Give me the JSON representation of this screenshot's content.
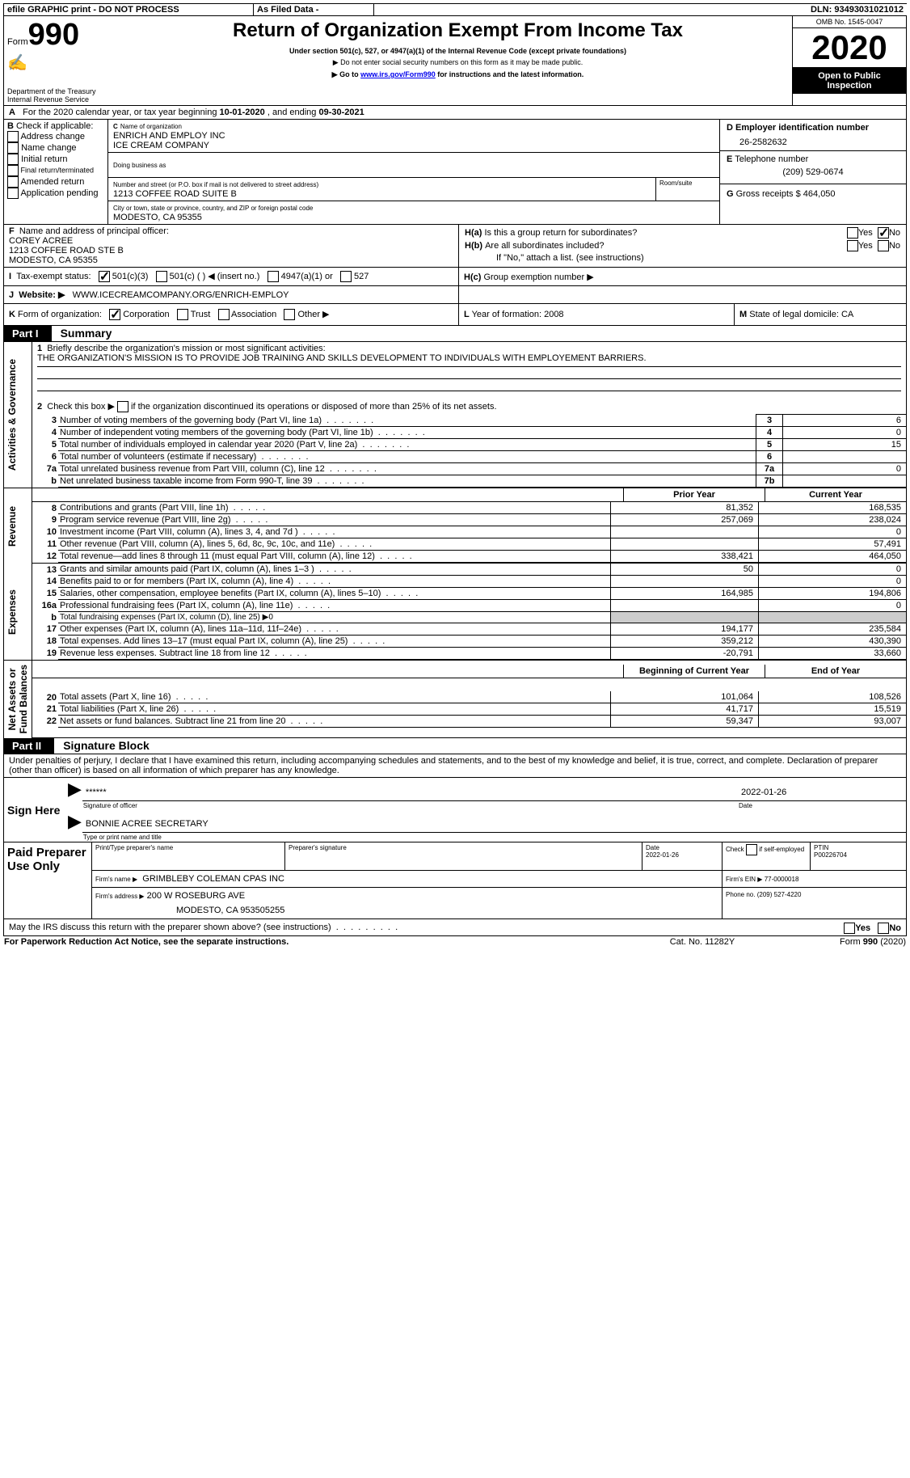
{
  "topbar": {
    "efile": "efile GRAPHIC print - DO NOT PROCESS",
    "asfiled": "As Filed Data -",
    "dln_label": "DLN:",
    "dln": "93493031021012"
  },
  "header": {
    "form_label": "Form",
    "form_no": "990",
    "dept": "Department of the Treasury\nInternal Revenue Service",
    "title": "Return of Organization Exempt From Income Tax",
    "sub1": "Under section 501(c), 527, or 4947(a)(1) of the Internal Revenue Code (except private foundations)",
    "sub2": "▶ Do not enter social security numbers on this form as it may be made public.",
    "sub3_prefix": "▶ Go to ",
    "sub3_link": "www.irs.gov/Form990",
    "sub3_suffix": " for instructions and the latest information.",
    "omb": "OMB No. 1545-0047",
    "year": "2020",
    "open": "Open to Public\nInspection"
  },
  "A": {
    "label": "A",
    "text": "For the 2020 calendar year, or tax year beginning ",
    "begin": "10-01-2020",
    "mid": " , and ending ",
    "end": "09-30-2021"
  },
  "B": {
    "label": "B",
    "heading": "Check if applicable:",
    "items": [
      "Address change",
      "Name change",
      "Initial return",
      "Final return/terminated",
      "Amended return",
      "Application pending"
    ]
  },
  "C": {
    "label": "C",
    "name_label": "Name of organization",
    "name1": "ENRICH AND EMPLOY INC",
    "name2": "ICE CREAM COMPANY",
    "dba_label": "Doing business as",
    "street_label": "Number and street (or P.O. box if mail is not delivered to street address)",
    "room_label": "Room/suite",
    "street": "1213 COFFEE ROAD SUITE B",
    "city_label": "City or town, state or province, country, and ZIP or foreign postal code",
    "city": "MODESTO, CA 95355"
  },
  "D": {
    "label": "D",
    "heading": "Employer identification number",
    "value": "26-2582632"
  },
  "E": {
    "label": "E",
    "heading": "Telephone number",
    "value": "(209) 529-0674"
  },
  "F": {
    "label": "F",
    "heading": "Name and address of principal officer:",
    "lines": [
      "COREY ACREE",
      "1213 COFFEE ROAD STE B",
      "MODESTO, CA  95355"
    ]
  },
  "G": {
    "label": "G",
    "heading": "Gross receipts $",
    "value": "464,050"
  },
  "H": {
    "a_label": "H(a)",
    "a_text": "Is this a group return for subordinates?",
    "b_label": "H(b)",
    "b_text": "Are all subordinates included?",
    "note": "If \"No,\" attach a list. (see instructions)",
    "c_label": "H(c)",
    "c_text": "Group exemption number ▶",
    "yes": "Yes",
    "no": "No"
  },
  "I": {
    "label": "I",
    "heading": "Tax-exempt status:",
    "opts": [
      "501(c)(3)",
      "501(c) (   ) ◀ (insert no.)",
      "4947(a)(1) or",
      "527"
    ]
  },
  "J": {
    "label": "J",
    "heading": "Website: ▶",
    "value": "WWW.ICECREAMCOMPANY.ORG/ENRICH-EMPLOY"
  },
  "K": {
    "label": "K",
    "heading": "Form of organization:",
    "opts": [
      "Corporation",
      "Trust",
      "Association",
      "Other ▶"
    ]
  },
  "L": {
    "label": "L",
    "heading": "Year of formation:",
    "value": "2008"
  },
  "M": {
    "label": "M",
    "heading": "State of legal domicile:",
    "value": "CA"
  },
  "partI": {
    "label": "Part I",
    "title": "Summary",
    "line1_label": "1",
    "line1": "Briefly describe the organization's mission or most significant activities:",
    "mission": "THE ORGANIZATION'S MISSION IS TO PROVIDE JOB TRAINING AND SKILLS DEVELOPMENT TO INDIVIDUALS WITH EMPLOYEMENT BARRIERS.",
    "line2_label": "2",
    "line2": "Check this box ▶",
    "line2_suffix": "if the organization discontinued its operations or disposed of more than 25% of its net assets.",
    "sec_gov": "Activities & Governance",
    "sec_rev": "Revenue",
    "sec_exp": "Expenses",
    "sec_net": "Net Assets or\nFund Balances",
    "prior": "Prior Year",
    "current": "Current Year",
    "begin": "Beginning of Current Year",
    "endyr": "End of Year",
    "rows_gov": [
      {
        "n": "3",
        "t": "Number of voting members of the governing body (Part VI, line 1a)",
        "box": "3",
        "v": "6"
      },
      {
        "n": "4",
        "t": "Number of independent voting members of the governing body (Part VI, line 1b)",
        "box": "4",
        "v": "0"
      },
      {
        "n": "5",
        "t": "Total number of individuals employed in calendar year 2020 (Part V, line 2a)",
        "box": "5",
        "v": "15"
      },
      {
        "n": "6",
        "t": "Total number of volunteers (estimate if necessary)",
        "box": "6",
        "v": ""
      },
      {
        "n": "7a",
        "t": "Total unrelated business revenue from Part VIII, column (C), line 12",
        "box": "7a",
        "v": "0"
      },
      {
        "n": "b",
        "t": "Net unrelated business taxable income from Form 990-T, line 39",
        "box": "7b",
        "v": ""
      }
    ],
    "rows_rev": [
      {
        "n": "8",
        "t": "Contributions and grants (Part VIII, line 1h)",
        "p": "81,352",
        "c": "168,535"
      },
      {
        "n": "9",
        "t": "Program service revenue (Part VIII, line 2g)",
        "p": "257,069",
        "c": "238,024"
      },
      {
        "n": "10",
        "t": "Investment income (Part VIII, column (A), lines 3, 4, and 7d )",
        "p": "",
        "c": "0"
      },
      {
        "n": "11",
        "t": "Other revenue (Part VIII, column (A), lines 5, 6d, 8c, 9c, 10c, and 11e)",
        "p": "",
        "c": "57,491"
      },
      {
        "n": "12",
        "t": "Total revenue—add lines 8 through 11 (must equal Part VIII, column (A), line 12)",
        "p": "338,421",
        "c": "464,050"
      }
    ],
    "rows_exp": [
      {
        "n": "13",
        "t": "Grants and similar amounts paid (Part IX, column (A), lines 1–3 )",
        "p": "50",
        "c": "0"
      },
      {
        "n": "14",
        "t": "Benefits paid to or for members (Part IX, column (A), line 4)",
        "p": "",
        "c": "0"
      },
      {
        "n": "15",
        "t": "Salaries, other compensation, employee benefits (Part IX, column (A), lines 5–10)",
        "p": "164,985",
        "c": "194,806"
      },
      {
        "n": "16a",
        "t": "Professional fundraising fees (Part IX, column (A), line 11e)",
        "p": "",
        "c": "0"
      },
      {
        "n": "b",
        "t": "Total fundraising expenses (Part IX, column (D), line 25) ▶0",
        "p": "",
        "c": "",
        "shade": true,
        "small": true
      },
      {
        "n": "17",
        "t": "Other expenses (Part IX, column (A), lines 11a–11d, 11f–24e)",
        "p": "194,177",
        "c": "235,584"
      },
      {
        "n": "18",
        "t": "Total expenses. Add lines 13–17 (must equal Part IX, column (A), line 25)",
        "p": "359,212",
        "c": "430,390"
      },
      {
        "n": "19",
        "t": "Revenue less expenses. Subtract line 18 from line 12",
        "p": "-20,791",
        "c": "33,660"
      }
    ],
    "rows_net": [
      {
        "n": "20",
        "t": "Total assets (Part X, line 16)",
        "p": "101,064",
        "c": "108,526"
      },
      {
        "n": "21",
        "t": "Total liabilities (Part X, line 26)",
        "p": "41,717",
        "c": "15,519"
      },
      {
        "n": "22",
        "t": "Net assets or fund balances. Subtract line 21 from line 20",
        "p": "59,347",
        "c": "93,007"
      }
    ]
  },
  "partII": {
    "label": "Part II",
    "title": "Signature Block",
    "declaration": "Under penalties of perjury, I declare that I have examined this return, including accompanying schedules and statements, and to the best of my knowledge and belief, it is true, correct, and complete. Declaration of preparer (other than officer) is based on all information of which preparer has any knowledge.",
    "sign_here": "Sign Here",
    "stars": "******",
    "sig_officer": "Signature of officer",
    "date": "Date",
    "date_val": "2022-01-26",
    "name_title": "BONNIE ACREE SECRETARY",
    "type_name": "Type or print name and title",
    "paid": "Paid Preparer Use Only",
    "prep_name_label": "Print/Type preparer's name",
    "prep_sig_label": "Preparer's signature",
    "prep_date": "2022-01-26",
    "check_label": "Check",
    "if_self": "if self-employed",
    "ptin_label": "PTIN",
    "ptin": "P00226704",
    "firm_name_label": "Firm's name   ▶",
    "firm_name": "GRIMBLEBY COLEMAN CPAS INC",
    "firm_ein_label": "Firm's EIN ▶",
    "firm_ein": "77-0000018",
    "firm_addr_label": "Firm's address ▶",
    "firm_addr1": "200 W ROSEBURG AVE",
    "firm_addr2": "MODESTO, CA  953505255",
    "phone_label": "Phone no.",
    "phone": "(209) 527-4220",
    "discuss": "May the IRS discuss this return with the preparer shown above? (see instructions)",
    "paperwork": "For Paperwork Reduction Act Notice, see the separate instructions.",
    "cat": "Cat. No. 11282Y",
    "formfoot": "Form 990 (2020)"
  }
}
